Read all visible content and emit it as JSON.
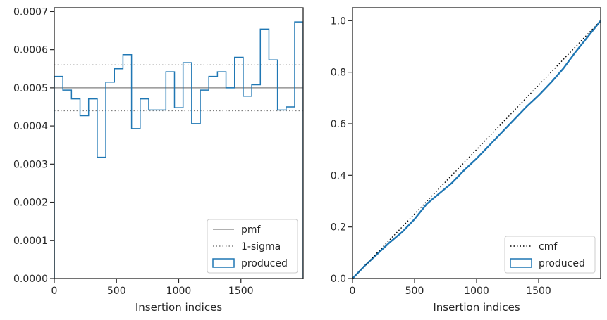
{
  "chart_data": [
    {
      "type": "step",
      "xlabel": "Insertion indices",
      "ylabel": "",
      "xlim": [
        0,
        2000
      ],
      "ylim": [
        0,
        0.00071
      ],
      "x_ticks": [
        0,
        500,
        1000,
        1500
      ],
      "y_ticks": [
        "0.0000",
        "0.0001",
        "0.0002",
        "0.0003",
        "0.0004",
        "0.0005",
        "0.0006",
        "0.0007"
      ],
      "y_tick_values": [
        0,
        0.0001,
        0.0002,
        0.0003,
        0.0004,
        0.0005,
        0.0006,
        0.0007
      ],
      "legend_position": "lower-right",
      "reference_lines": [
        {
          "name": "pmf",
          "style": "solid",
          "color": "#808080",
          "y": 0.0005
        },
        {
          "name": "1-sigma",
          "style": "dotted",
          "color": "#808080",
          "y": [
            0.00044,
            0.00056
          ]
        }
      ],
      "series": [
        {
          "name": "produced",
          "color": "#1f77b4",
          "bin_edges": [
            0,
            69,
            138,
            207,
            276,
            345,
            414,
            483,
            552,
            621,
            690,
            759,
            828,
            897,
            966,
            1035,
            1104,
            1173,
            1242,
            1311,
            1380,
            1449,
            1518,
            1587,
            1656,
            1725,
            1794,
            1863,
            1932,
            2000
          ],
          "values": [
            0.00053,
            0.000494,
            0.000471,
            0.000427,
            0.000471,
            0.000318,
            0.000515,
            0.00055,
            0.000587,
            0.000393,
            0.000471,
            0.000442,
            0.000442,
            0.000542,
            0.000448,
            0.000566,
            0.000406,
            0.000494,
            0.00053,
            0.000542,
            0.0005,
            0.00058,
            0.000478,
            0.000508,
            0.000654,
            0.000573,
            0.000442,
            0.00045,
            0.000673
          ]
        }
      ]
    },
    {
      "type": "line",
      "xlabel": "Insertion indices",
      "ylabel": "",
      "xlim": [
        0,
        2000
      ],
      "ylim": [
        0,
        1.05
      ],
      "x_ticks": [
        0,
        500,
        1000,
        1500
      ],
      "y_ticks": [
        "0.0",
        "0.2",
        "0.4",
        "0.6",
        "0.8",
        "1.0"
      ],
      "y_tick_values": [
        0,
        0.2,
        0.4,
        0.6,
        0.8,
        1.0
      ],
      "legend_position": "lower-right",
      "series": [
        {
          "name": "cmf",
          "style": "dotted",
          "color": "#000000",
          "x": [
            0,
            2000
          ],
          "y": [
            0,
            1
          ]
        },
        {
          "name": "produced",
          "color": "#1f77b4",
          "x": [
            0,
            100,
            200,
            300,
            400,
            500,
            600,
            700,
            800,
            900,
            1000,
            1100,
            1200,
            1300,
            1400,
            1500,
            1600,
            1700,
            1800,
            1900,
            2000
          ],
          "y": [
            0,
            0.05,
            0.095,
            0.14,
            0.18,
            0.23,
            0.29,
            0.33,
            0.37,
            0.42,
            0.465,
            0.515,
            0.565,
            0.615,
            0.665,
            0.71,
            0.76,
            0.815,
            0.88,
            0.94,
            1.0
          ]
        }
      ]
    }
  ]
}
